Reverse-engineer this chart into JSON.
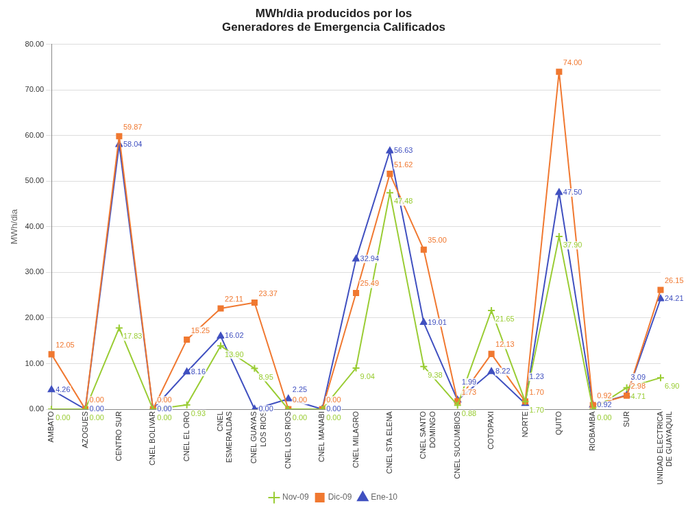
{
  "chart_data": {
    "type": "line",
    "title": "MWh/dia producidos por los\nGeneradores de Emergencia Calificados",
    "ylabel": "MWh/dia",
    "categories": [
      "AMBATO",
      "AZOGUES",
      "CENTRO SUR",
      "CNEL BOLIVAR",
      "CNEL EL ORO",
      "CNEL\nESMERALDAS",
      "CNEL GUAYAS\nLOS RIOS",
      "CNEL LOS RIOS",
      "CNEL MANABI",
      "CNEL MILAGRO",
      "CNEL STA ELENA",
      "CNEL SANTO\nDOMINGO",
      "CNEL SUCUMBIOS",
      "COTOPAXI",
      "NORTE",
      "QUITO",
      "RIOBAMBA",
      "SUR",
      "UNIDAD ELECTRICA\nDE GUAYAQUIL"
    ],
    "series": [
      {
        "name": "Nov-09",
        "color": "#99cc33",
        "marker": "cross",
        "values": [
          0,
          0,
          17.83,
          0,
          0.93,
          13.9,
          8.95,
          0,
          0,
          9.04,
          47.48,
          9.38,
          0.88,
          21.65,
          1.7,
          37.9,
          0,
          4.71,
          6.9
        ],
        "value_labels": [
          "0.00",
          "0.00",
          "17.83",
          "0.00",
          "0.93",
          "13.90",
          "8.95",
          "0.00",
          "0.00",
          "9.04",
          "47.48",
          "9.38",
          "0.88",
          "21.65",
          "1.70",
          "37.90",
          "0.00",
          "4.71",
          "6.90"
        ]
      },
      {
        "name": "Dic-09",
        "color": "#f07830",
        "marker": "square",
        "values": [
          12.05,
          0,
          59.87,
          0,
          15.25,
          22.11,
          23.37,
          0,
          0,
          25.49,
          51.62,
          35.0,
          1.73,
          12.13,
          1.7,
          74.0,
          0.92,
          2.98,
          26.15
        ],
        "value_labels": [
          "12.05",
          "0.00",
          "59.87",
          "0.00",
          "15.25",
          "22.11",
          "23.37",
          "0.00",
          "0.00",
          "25.49",
          "51.62",
          "35.00",
          "1.73",
          "12.13",
          "1.70",
          "74.00",
          "0.92",
          "2.98",
          "26.15"
        ]
      },
      {
        "name": "Ene-10",
        "color": "#4050c0",
        "marker": "triangle",
        "values": [
          4.26,
          0,
          58.04,
          0,
          8.16,
          16.02,
          0,
          2.25,
          0,
          32.94,
          56.63,
          19.01,
          1.99,
          8.22,
          1.23,
          47.5,
          0.92,
          3.09,
          24.21
        ],
        "value_labels": [
          "4.26",
          "0.00",
          "58.04",
          "0.00",
          "8.16",
          "16.02",
          "0.00",
          "2.25",
          "0.00",
          "32.94",
          "56.63",
          "19.01",
          "1.99",
          "8.22",
          "1.23",
          "47.50",
          "0.92",
          "3.09",
          "24.21"
        ]
      }
    ],
    "ylim": [
      0,
      80
    ],
    "yticks": [
      {
        "value": 0,
        "label": "0.00"
      },
      {
        "value": 10,
        "label": "10.00"
      },
      {
        "value": 20,
        "label": "20.00"
      },
      {
        "value": 30,
        "label": "30.00"
      },
      {
        "value": 40,
        "label": "40.00"
      },
      {
        "value": 50,
        "label": "50.00"
      },
      {
        "value": 60,
        "label": "60.00"
      },
      {
        "value": 70,
        "label": "70.00"
      },
      {
        "value": 80,
        "label": "80.00"
      }
    ],
    "grid": "y",
    "legend": "bottom",
    "line_style": "solid"
  }
}
